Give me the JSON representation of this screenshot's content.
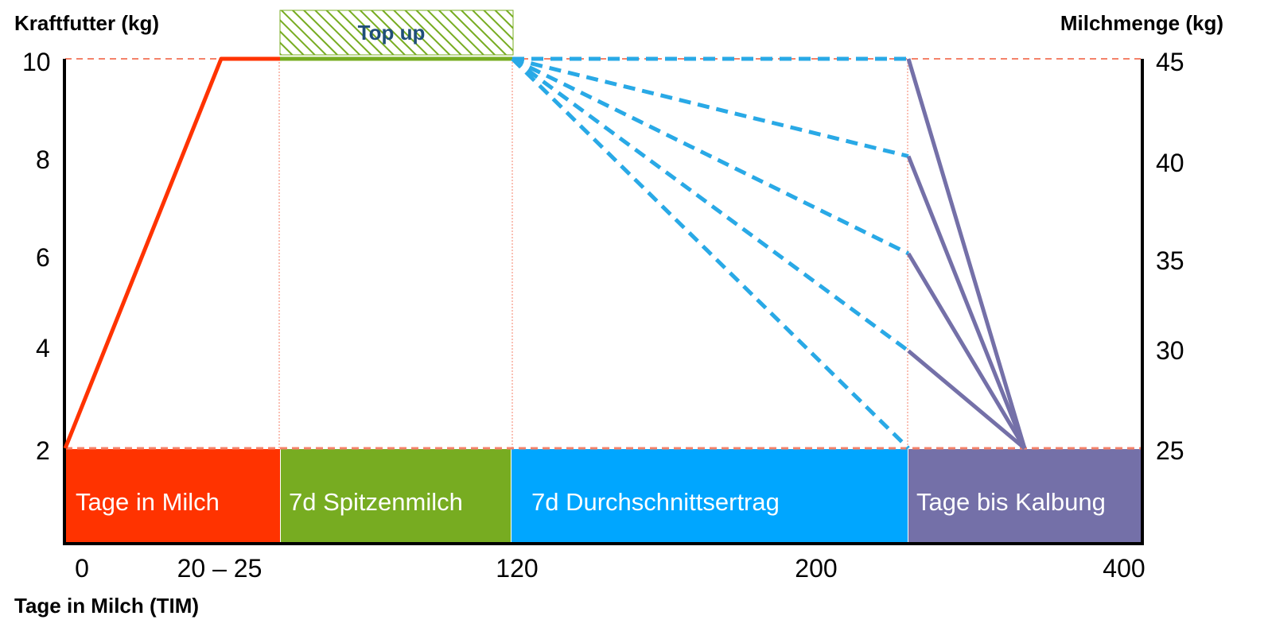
{
  "chart_data": {
    "type": "line",
    "left_axis": {
      "label": "Kraftfutter (kg)",
      "ticks": [
        2,
        4,
        6,
        8,
        10
      ],
      "range": [
        2,
        10
      ]
    },
    "right_axis": {
      "label": "Milchmenge (kg)",
      "ticks": [
        25,
        30,
        35,
        40,
        45
      ],
      "range": [
        25,
        45
      ]
    },
    "x_axis": {
      "label": "Tage in Milch (TIM)",
      "tick_labels": [
        "0",
        "20 – 25",
        "120",
        "200",
        "400"
      ]
    },
    "topup": {
      "label": "Top up"
    },
    "phases": [
      {
        "label": "Tage in Milch",
        "color": "#ff3300"
      },
      {
        "label": "7d Spitzenmilch",
        "color": "#77ac21"
      },
      {
        "label": "7d Durchschnittsertrag",
        "color": "#00a6ff"
      },
      {
        "label": "Tage bis Kalbung",
        "color": "#7470a8"
      }
    ],
    "series": [
      {
        "role": "Tage in Milch",
        "color": "#ff3300",
        "style": "solid",
        "points": [
          [
            0,
            2
          ],
          [
            22.5,
            10
          ],
          [
            31,
            10
          ]
        ]
      },
      {
        "role": "7d Spitzenmilch",
        "color": "#77ac21",
        "style": "solid",
        "points": [
          [
            31,
            10
          ],
          [
            120,
            10
          ]
        ]
      },
      {
        "role": "7d Durchschnittsertrag",
        "color": "#29a9e6",
        "style": "dashed",
        "lines": [
          [
            [
              120,
              10
            ],
            [
              240,
              10
            ]
          ],
          [
            [
              120,
              10
            ],
            [
              240,
              8
            ]
          ],
          [
            [
              120,
              10
            ],
            [
              240,
              6
            ]
          ],
          [
            [
              120,
              10
            ],
            [
              240,
              4
            ]
          ],
          [
            [
              120,
              10
            ],
            [
              240,
              2
            ]
          ]
        ]
      },
      {
        "role": "Tage bis Kalbung",
        "color": "#7470a8",
        "style": "solid",
        "lines": [
          [
            [
              240,
              10
            ],
            [
              305,
              2
            ]
          ],
          [
            [
              240,
              8
            ],
            [
              305,
              2
            ]
          ],
          [
            [
              240,
              6
            ],
            [
              305,
              2
            ]
          ],
          [
            [
              240,
              4
            ],
            [
              305,
              2
            ]
          ]
        ]
      }
    ],
    "reference_lines": {
      "color": "#f4826a",
      "style": "dashed",
      "levels": [
        10,
        2
      ]
    },
    "grid": false,
    "colors": {
      "axis": "#000000",
      "guide": "#f4826a"
    }
  }
}
